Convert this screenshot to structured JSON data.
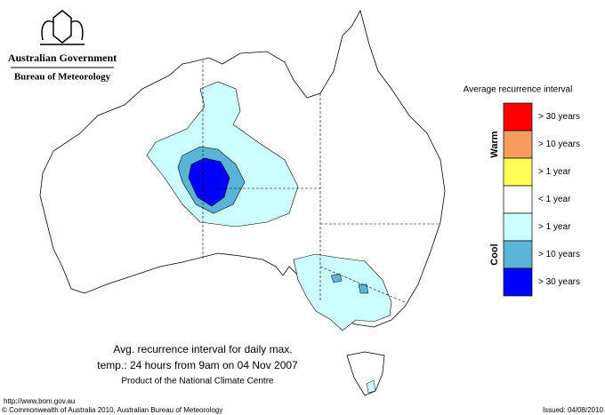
{
  "header": {
    "government": "Australian Government",
    "agency": "Bureau of Meteorology"
  },
  "legend": {
    "title": "Average recurrence interval",
    "groups": [
      "Warm",
      "Cool"
    ],
    "items": [
      {
        "label": "> 30 years",
        "color": "#ff0000"
      },
      {
        "label": "> 10 years",
        "color": "#f79a5e"
      },
      {
        "label": "> 1 year",
        "color": "#ffff55"
      },
      {
        "label": "< 1 year",
        "color": "#ffffff"
      },
      {
        "label": "> 1 year",
        "color": "#ccffff"
      },
      {
        "label": "> 10 years",
        "color": "#5ab4d8"
      },
      {
        "label": "> 30 years",
        "color": "#0000ff"
      }
    ]
  },
  "caption": {
    "lines": [
      "Avg. recurrence interval for daily max.",
      "temp.: 24 hours from 9am on 04 Nov 2007"
    ],
    "credit": "Product of the National Climate Centre"
  },
  "footer": {
    "url": "http://www.bom.gov.au",
    "copyright": "© Commonwealth of Australia 2010, Australian Bureau of Meteorology",
    "issued": "Issued: 04/08/2010"
  }
}
